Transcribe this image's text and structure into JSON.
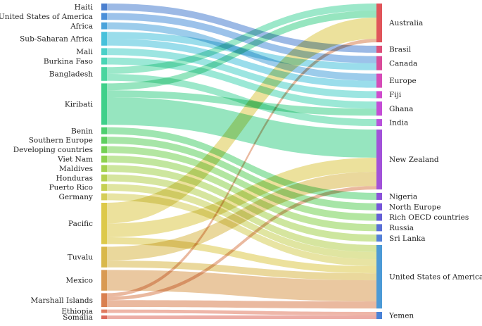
{
  "chart_data": {
    "type": "sankey",
    "title": "",
    "unit": "flow units (estimated from band widths)",
    "sources": [
      {
        "name": "Haiti",
        "color": "#4a7fcf"
      },
      {
        "name": "United States of America",
        "color": "#4a8fd9"
      },
      {
        "name": "Africa",
        "color": "#4aa3db"
      },
      {
        "name": "Sub-Saharan Africa",
        "color": "#47c1db"
      },
      {
        "name": "Mali",
        "color": "#4ad0c8"
      },
      {
        "name": "Burkina Faso",
        "color": "#49d5b5"
      },
      {
        "name": "Bangladesh",
        "color": "#4ad59f"
      },
      {
        "name": "Kiribati",
        "color": "#3fd08a"
      },
      {
        "name": "Benin",
        "color": "#4ecf6f"
      },
      {
        "name": "Southern Europe",
        "color": "#5fcf5f"
      },
      {
        "name": "Developing countries",
        "color": "#74d153"
      },
      {
        "name": "Viet Nam",
        "color": "#8ed24e"
      },
      {
        "name": "Maldives",
        "color": "#a4d24e"
      },
      {
        "name": "Honduras",
        "color": "#b5d050"
      },
      {
        "name": "Puerto Rico",
        "color": "#c6d053"
      },
      {
        "name": "Germany",
        "color": "#d5ce57"
      },
      {
        "name": "Pacific",
        "color": "#ddc94a"
      },
      {
        "name": "Tuvalu",
        "color": "#d9b84a"
      },
      {
        "name": "Mexico",
        "color": "#d99a52"
      },
      {
        "name": "Marshall Islands",
        "color": "#d98050"
      },
      {
        "name": "Ethiopia",
        "color": "#e07a60"
      },
      {
        "name": "Somalia",
        "color": "#dd6a5c"
      }
    ],
    "targets": [
      {
        "name": "Australia",
        "color": "#e0555a"
      },
      {
        "name": "Brasil",
        "color": "#dd4f7a"
      },
      {
        "name": "Canada",
        "color": "#d94c9a"
      },
      {
        "name": "Europe",
        "color": "#d64cb8"
      },
      {
        "name": "Fiji",
        "color": "#cf4ccd"
      },
      {
        "name": "Ghana",
        "color": "#c44ed6"
      },
      {
        "name": "India",
        "color": "#b852db"
      },
      {
        "name": "New Zealand",
        "color": "#a252d9"
      },
      {
        "name": "Nigeria",
        "color": "#8b52d9"
      },
      {
        "name": "North Europe",
        "color": "#7656d9"
      },
      {
        "name": "Rich OECD countries",
        "color": "#6560d6"
      },
      {
        "name": "Russia",
        "color": "#5a70d6"
      },
      {
        "name": "Sri Lanka",
        "color": "#5480d8"
      },
      {
        "name": "United States of America",
        "color": "#4c9ad6"
      },
      {
        "name": "Yemen",
        "color": "#4a82d6"
      }
    ],
    "flows": [
      {
        "source": "Haiti",
        "target": "Brasil",
        "value": 1
      },
      {
        "source": "United States of America",
        "target": "Canada",
        "value": 1
      },
      {
        "source": "Africa",
        "target": "Europe",
        "value": 1
      },
      {
        "source": "Sub-Saharan Africa",
        "target": "Canada",
        "value": 1
      },
      {
        "source": "Sub-Saharan Africa",
        "target": "Europe",
        "value": 1
      },
      {
        "source": "Mali",
        "target": "Fiji",
        "value": 1
      },
      {
        "source": "Burkina Faso",
        "target": "Ghana",
        "value": 1
      },
      {
        "source": "Bangladesh",
        "target": "Australia",
        "value": 1
      },
      {
        "source": "Bangladesh",
        "target": "India",
        "value": 1
      },
      {
        "source": "Kiribati",
        "target": "Australia",
        "value": 1
      },
      {
        "source": "Kiribati",
        "target": "Ghana",
        "value": 1
      },
      {
        "source": "Kiribati",
        "target": "New Zealand",
        "value": 4
      },
      {
        "source": "Benin",
        "target": "Nigeria",
        "value": 1
      },
      {
        "source": "Southern Europe",
        "target": "North Europe",
        "value": 1
      },
      {
        "source": "Developing countries",
        "target": "Rich OECD countries",
        "value": 1
      },
      {
        "source": "Viet Nam",
        "target": "Russia",
        "value": 1
      },
      {
        "source": "Maldives",
        "target": "Sri Lanka",
        "value": 1
      },
      {
        "source": "Honduras",
        "target": "United States of America",
        "value": 1
      },
      {
        "source": "Puerto Rico",
        "target": "United States of America",
        "value": 1
      },
      {
        "source": "Germany",
        "target": "United States of America",
        "value": 1
      },
      {
        "source": "Pacific",
        "target": "Australia",
        "value": 3
      },
      {
        "source": "Pacific",
        "target": "New Zealand",
        "value": 2
      },
      {
        "source": "Pacific",
        "target": "United States of America",
        "value": 1
      },
      {
        "source": "Tuvalu",
        "target": "New Zealand",
        "value": 2
      },
      {
        "source": "Tuvalu",
        "target": "United States of America",
        "value": 1
      },
      {
        "source": "Mexico",
        "target": "United States of America",
        "value": 3
      },
      {
        "source": "Marshall Islands",
        "target": "Australia",
        "value": 0.5
      },
      {
        "source": "Marshall Islands",
        "target": "New Zealand",
        "value": 0.5
      },
      {
        "source": "Marshall Islands",
        "target": "United States of America",
        "value": 1
      },
      {
        "source": "Ethiopia",
        "target": "Yemen",
        "value": 0.5
      },
      {
        "source": "Somalia",
        "target": "Yemen",
        "value": 0.5
      }
    ]
  }
}
